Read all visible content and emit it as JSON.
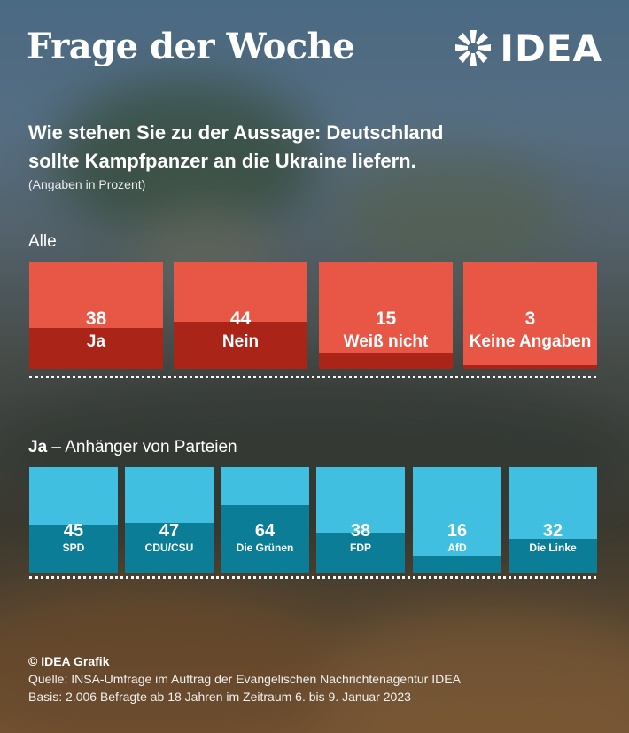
{
  "header": {
    "title": "Frage der Woche",
    "logo_text": "IDEA"
  },
  "question": "Wie stehen Sie zu der Aussage: Deutschland sollte Kampfpanzer an die Ukraine liefern.",
  "unit_note": "(Angaben in Prozent)",
  "chart_data": [
    {
      "type": "bar",
      "title": "Alle",
      "unit": "Prozent",
      "categories": [
        "Ja",
        "Nein",
        "Weiß nicht",
        "Keine Angaben"
      ],
      "values": [
        38,
        44,
        15,
        3
      ],
      "ylim": [
        0,
        100
      ],
      "colors": {
        "tile": "#e85745",
        "fill": "#ab2418"
      }
    },
    {
      "type": "bar",
      "title_bold": "Ja",
      "title_rest": " – Anhänger von Parteien",
      "unit": "Prozent",
      "categories": [
        "SPD",
        "CDU/CSU",
        "Die Grünen",
        "FDP",
        "AfD",
        "Die Linke"
      ],
      "values": [
        45,
        47,
        64,
        38,
        16,
        32
      ],
      "ylim": [
        0,
        100
      ],
      "colors": {
        "tile": "#40bfe0",
        "fill": "#0b7d97"
      }
    }
  ],
  "footer": {
    "copyright": "© IDEA Grafik",
    "source": "Quelle: INSA-Umfrage im Auftrag der Evangelischen Nachrichtenagentur IDEA",
    "basis": "Basis: 2.006 Befragte ab 18 Jahren im Zeitraum 6. bis 9. Januar 2023"
  }
}
